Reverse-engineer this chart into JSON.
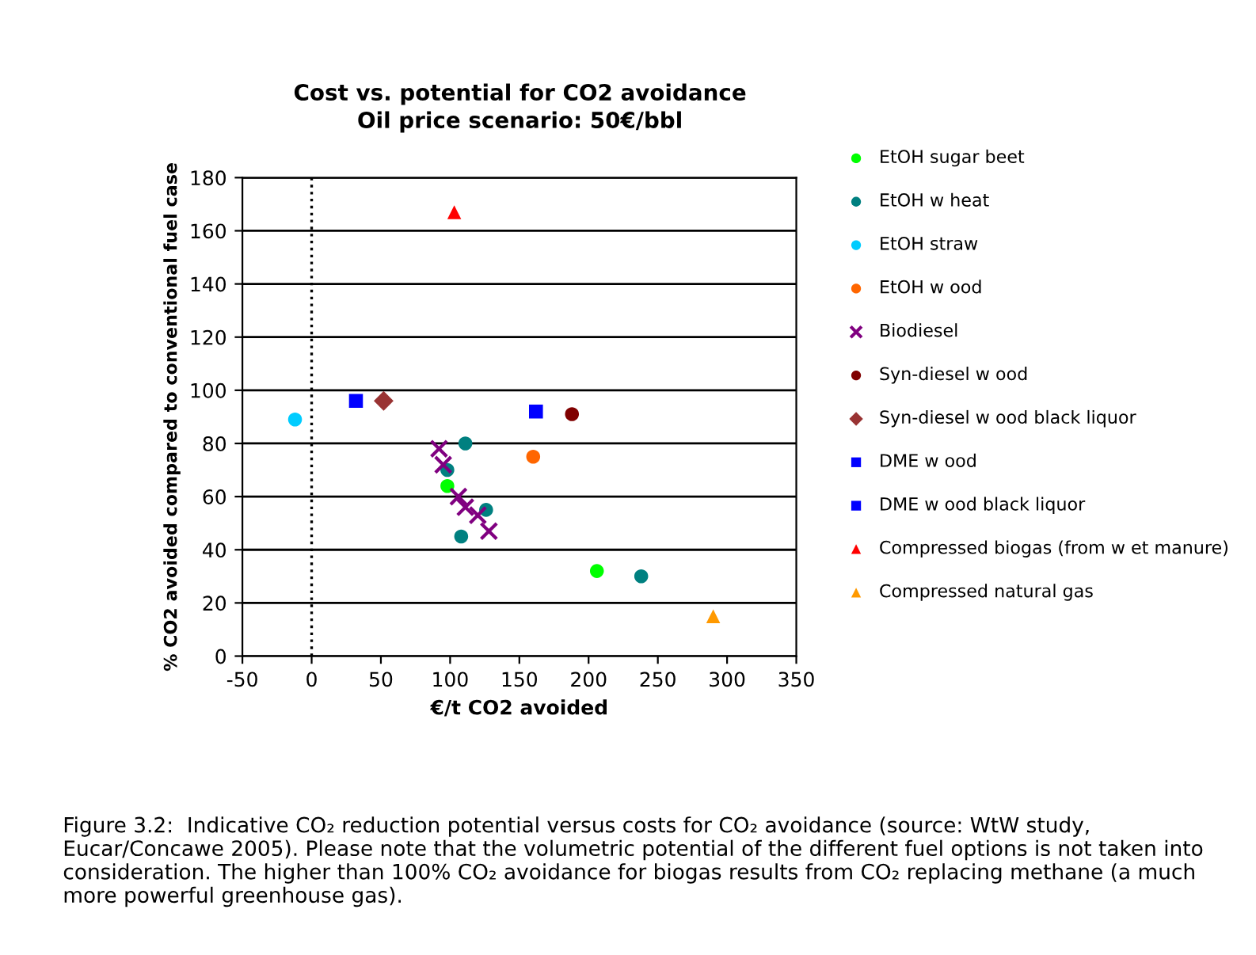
{
  "chart_data": {
    "type": "scatter",
    "title": "Cost vs. potential for CO2 avoidance",
    "subtitle": "Oil price scenario: 50€/bbl",
    "xlabel": "€/t CO2 avoided",
    "ylabel": "% CO2 avoided compared to conventional fuel case",
    "xlim": [
      -50,
      350
    ],
    "xticks": [
      -50,
      0,
      50,
      100,
      150,
      200,
      250,
      300,
      350
    ],
    "ylim": [
      0,
      180
    ],
    "yticks": [
      0,
      20,
      40,
      60,
      80,
      100,
      120,
      140,
      160,
      180
    ],
    "grid": "y",
    "legend": "right",
    "ref_lines": [
      {
        "axis": "x",
        "value": 0,
        "line_style": "dotted",
        "color": "#000000"
      }
    ],
    "series": [
      {
        "name": "EtOH sugar beet",
        "color": "#00ff00",
        "marker": "circle",
        "x": [
          98,
          206
        ],
        "values": [
          64,
          32
        ]
      },
      {
        "name": "EtOH w heat",
        "color": "#008080",
        "marker": "circle",
        "x": [
          111,
          98,
          126,
          108,
          238
        ],
        "values": [
          80,
          70,
          55,
          45,
          30
        ]
      },
      {
        "name": "EtOH straw",
        "color": "#00ccff",
        "marker": "circle",
        "x": [
          -12
        ],
        "values": [
          89
        ]
      },
      {
        "name": "EtOH w ood",
        "color": "#ff6600",
        "marker": "circle",
        "x": [
          160
        ],
        "values": [
          75
        ]
      },
      {
        "name": "Biodiesel",
        "color": "#800080",
        "marker": "cross",
        "x": [
          92,
          95,
          106,
          111,
          120,
          128
        ],
        "values": [
          78,
          72,
          60,
          56,
          53,
          47
        ]
      },
      {
        "name": "Syn-diesel w ood",
        "color": "#800000",
        "marker": "circle",
        "x": [
          188
        ],
        "values": [
          91
        ]
      },
      {
        "name": "Syn-diesel w ood black liquor",
        "color": "#993333",
        "marker": "diamond",
        "x": [
          52
        ],
        "values": [
          96
        ]
      },
      {
        "name": "DME w ood",
        "color": "#0000ff",
        "marker": "square",
        "x": [
          162
        ],
        "values": [
          92
        ]
      },
      {
        "name": "DME w ood black liquor",
        "color": "#0000ff",
        "marker": "square",
        "x": [
          32
        ],
        "values": [
          96
        ]
      },
      {
        "name": "Compressed biogas (from w et manure)",
        "color": "#ff0000",
        "marker": "triangle",
        "x": [
          103
        ],
        "values": [
          167
        ]
      },
      {
        "name": "Compressed natural gas",
        "color": "#ff9900",
        "marker": "triangle",
        "x": [
          290
        ],
        "values": [
          15
        ]
      }
    ],
    "annotations": [
      "Figure 3.2:  Indicative CO₂ reduction potential versus costs for CO₂ avoidance (source: WtW study, Eucar/Concawe 2005). Please note that the volumetric potential of the different fuel options is not taken into consideration. The higher than 100% CO₂ avoidance for biogas results from CO₂ replacing methane (a much more powerful greenhouse gas)."
    ]
  }
}
